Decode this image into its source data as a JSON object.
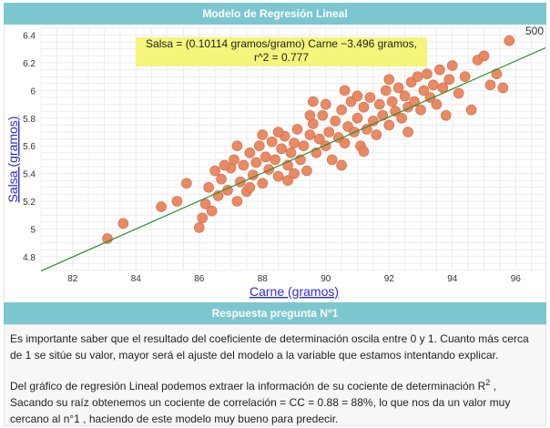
{
  "header": {
    "title": "Modelo de Regresión Lineal"
  },
  "answer_header": {
    "title": "Respuesta pregunta N°1"
  },
  "answer": {
    "paragraph1": "Es importante saber que el resultado del coeficiente de determinación oscila entre 0 y 1. Cuanto más cerca de 1 se sitúe su valor, mayor será el ajuste del modelo a la variable que estamos intentando explicar.",
    "paragraph2_a": "Del gráfico de regresión Lineal podemos extraer la información de su cociente de determinación R",
    "paragraph2_sup": "2",
    "paragraph2_b": " , Sacando su raíz obtenemos un cociente de correlación = CC = 0.88 = 88%, lo que nos da un valor muy cercano al n°1 , haciendo de este modelo muy bueno para predecir."
  },
  "colors": {
    "header_bg": "#7cc7cf",
    "point": "#e8845d",
    "line": "#2e8b2e",
    "equation_bg": "#f4f57a",
    "axis_title": "#2a2ae0"
  },
  "chart_data": {
    "type": "scatter",
    "xlabel": "Carne (gramos)",
    "ylabel": "Salsa (gramos)",
    "xlim": [
      81,
      97
    ],
    "ylim": [
      4.7,
      6.45
    ],
    "xticks": [
      82,
      84,
      86,
      88,
      90,
      92,
      94,
      96
    ],
    "yticks": [
      4.8,
      5,
      5.2,
      5.4,
      5.6,
      5.8,
      6,
      6.2,
      6.4
    ],
    "grid": true,
    "n_label": "500",
    "equation_line1": "Salsa = (0.10114 gramos/gramo) Carne −3.496 gramos,",
    "equation_line2": "r^2 = 0.777",
    "regression": {
      "slope": 0.10114,
      "intercept": -3.496
    },
    "points": [
      [
        83.1,
        4.93
      ],
      [
        83.6,
        5.04
      ],
      [
        84.8,
        5.16
      ],
      [
        85.3,
        5.2
      ],
      [
        85.6,
        5.33
      ],
      [
        86.0,
        5.01
      ],
      [
        86.1,
        5.08
      ],
      [
        86.2,
        5.18
      ],
      [
        86.3,
        5.3
      ],
      [
        86.4,
        5.13
      ],
      [
        86.5,
        5.42
      ],
      [
        86.6,
        5.24
      ],
      [
        86.7,
        5.36
      ],
      [
        86.9,
        5.28
      ],
      [
        87.0,
        5.44
      ],
      [
        87.1,
        5.5
      ],
      [
        87.2,
        5.2
      ],
      [
        87.3,
        5.34
      ],
      [
        87.4,
        5.46
      ],
      [
        87.5,
        5.27
      ],
      [
        87.6,
        5.55
      ],
      [
        87.7,
        5.39
      ],
      [
        87.8,
        5.48
      ],
      [
        87.9,
        5.6
      ],
      [
        88.0,
        5.33
      ],
      [
        88.1,
        5.52
      ],
      [
        88.2,
        5.43
      ],
      [
        88.3,
        5.63
      ],
      [
        88.4,
        5.5
      ],
      [
        88.5,
        5.38
      ],
      [
        88.6,
        5.58
      ],
      [
        88.7,
        5.67
      ],
      [
        88.8,
        5.46
      ],
      [
        88.9,
        5.55
      ],
      [
        89.0,
        5.62
      ],
      [
        89.1,
        5.72
      ],
      [
        89.2,
        5.5
      ],
      [
        89.3,
        5.6
      ],
      [
        89.4,
        5.42
      ],
      [
        89.5,
        5.68
      ],
      [
        89.6,
        5.76
      ],
      [
        89.7,
        5.55
      ],
      [
        89.8,
        5.65
      ],
      [
        89.9,
        5.82
      ],
      [
        90.0,
        5.6
      ],
      [
        90.1,
        5.7
      ],
      [
        90.2,
        5.5
      ],
      [
        90.3,
        5.78
      ],
      [
        90.4,
        5.66
      ],
      [
        90.5,
        5.86
      ],
      [
        90.6,
        5.62
      ],
      [
        90.7,
        5.74
      ],
      [
        90.8,
        5.92
      ],
      [
        90.9,
        5.7
      ],
      [
        91.0,
        5.8
      ],
      [
        91.1,
        5.6
      ],
      [
        91.2,
        5.88
      ],
      [
        91.3,
        5.72
      ],
      [
        91.4,
        5.95
      ],
      [
        91.5,
        5.78
      ],
      [
        91.6,
        5.68
      ],
      [
        91.7,
        5.9
      ],
      [
        91.8,
        5.82
      ],
      [
        91.9,
        6.0
      ],
      [
        92.0,
        5.75
      ],
      [
        92.1,
        5.92
      ],
      [
        92.2,
        5.85
      ],
      [
        92.3,
        6.02
      ],
      [
        92.4,
        5.8
      ],
      [
        92.5,
        5.96
      ],
      [
        92.6,
        5.88
      ],
      [
        92.7,
        6.06
      ],
      [
        92.8,
        5.92
      ],
      [
        92.9,
        6.1
      ],
      [
        93.0,
        5.86
      ],
      [
        93.1,
        6.0
      ],
      [
        93.2,
        6.12
      ],
      [
        93.3,
        5.95
      ],
      [
        93.4,
        6.04
      ],
      [
        93.5,
        5.9
      ],
      [
        93.6,
        6.15
      ],
      [
        93.7,
        6.02
      ],
      [
        93.8,
        5.82
      ],
      [
        93.9,
        6.08
      ],
      [
        94.0,
        6.18
      ],
      [
        94.2,
        5.98
      ],
      [
        94.4,
        6.1
      ],
      [
        94.6,
        5.86
      ],
      [
        94.8,
        6.22
      ],
      [
        95.0,
        6.25
      ],
      [
        95.2,
        6.04
      ],
      [
        95.4,
        6.12
      ],
      [
        95.6,
        6.02
      ],
      [
        95.8,
        6.36
      ],
      [
        88.5,
        5.7
      ],
      [
        89.5,
        5.82
      ],
      [
        90.5,
        5.46
      ],
      [
        91.2,
        5.56
      ],
      [
        87.2,
        5.6
      ],
      [
        88.0,
        5.68
      ],
      [
        89.0,
        5.4
      ],
      [
        90.0,
        5.9
      ],
      [
        91.0,
        5.96
      ],
      [
        92.0,
        6.08
      ],
      [
        87.6,
        5.3
      ],
      [
        88.8,
        5.35
      ],
      [
        86.8,
        5.46
      ],
      [
        89.6,
        5.92
      ],
      [
        90.6,
        6.0
      ],
      [
        92.6,
        5.7
      ]
    ]
  }
}
